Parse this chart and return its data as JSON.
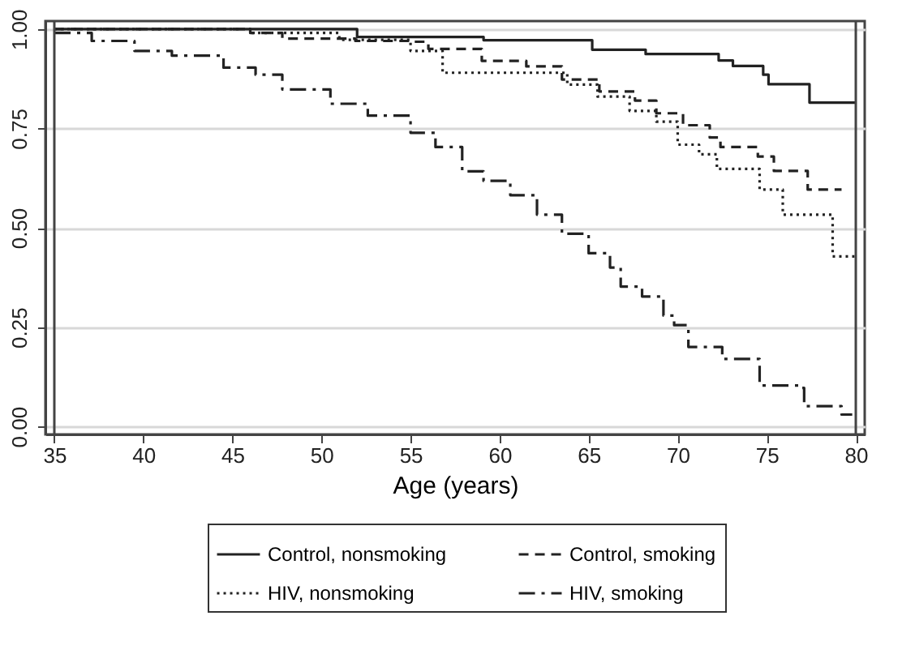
{
  "chart_data": {
    "type": "step",
    "xlabel": "Age (years)",
    "xlim": [
      34.5,
      80.5
    ],
    "xticks": [
      35,
      40,
      45,
      50,
      55,
      60,
      65,
      70,
      75,
      80
    ],
    "ylim": [
      -0.02,
      1.02
    ],
    "yticks": [
      {
        "value": 0,
        "label": "0.00"
      },
      {
        "value": 0.25,
        "label": "0.25"
      },
      {
        "value": 0.5,
        "label": "0.50"
      },
      {
        "value": 0.75,
        "label": "0.75"
      },
      {
        "value": 1,
        "label": "1.00"
      }
    ],
    "grid": "y",
    "legend": "bottom",
    "marker": "none",
    "ref_lines": [
      {
        "axis": "x",
        "value": 35,
        "color": "#444444"
      },
      {
        "axis": "x",
        "value": 80,
        "color": "#444444"
      }
    ],
    "series": [
      {
        "name": "Control, nonsmoking",
        "color": "#222222",
        "line_style": "solid",
        "x": [
          35,
          52,
          59.1,
          65.2,
          68.2,
          72.3,
          73.1,
          74.8,
          75.1,
          77.4,
          80
        ],
        "values": [
          1.0,
          0.98,
          0.972,
          0.948,
          0.937,
          0.921,
          0.907,
          0.885,
          0.861,
          0.815,
          0.815
        ]
      },
      {
        "name": "Control, smoking",
        "color": "#222222",
        "line_style": "dashed",
        "x": [
          35,
          46,
          47.8,
          51.9,
          55,
          56,
          59,
          61.5,
          63.5,
          65.6,
          67.6,
          68.8,
          70.3,
          71.8,
          72.4,
          74.5,
          75.4,
          77.3,
          79.2
        ],
        "values": [
          1.0,
          0.99,
          0.976,
          0.97,
          0.968,
          0.95,
          0.92,
          0.906,
          0.873,
          0.843,
          0.82,
          0.788,
          0.758,
          0.727,
          0.703,
          0.679,
          0.643,
          0.596,
          0.596
        ]
      },
      {
        "name": "HIV, nonsmoking",
        "color": "#222222",
        "line_style": "dotted",
        "x": [
          35,
          46,
          51,
          55,
          56.8,
          63.8,
          65.5,
          67.3,
          68.8,
          70,
          71.2,
          72.2,
          74.6,
          75.9,
          78.7,
          80
        ],
        "values": [
          1.0,
          0.99,
          0.973,
          0.945,
          0.89,
          0.86,
          0.83,
          0.794,
          0.767,
          0.709,
          0.685,
          0.648,
          0.596,
          0.533,
          0.428,
          0.428
        ]
      },
      {
        "name": "HIV, smoking",
        "color": "#222222",
        "line_style": "dashdot",
        "x": [
          35,
          37.1,
          39.5,
          41.6,
          44.5,
          46.3,
          47.8,
          50.5,
          52.6,
          55,
          56.4,
          57.9,
          59.1,
          60.6,
          62.1,
          63.5,
          65,
          66.2,
          66.8,
          68,
          69.2,
          69.8,
          70.6,
          72.5,
          74.6,
          76.9,
          77.1,
          79.2,
          79.8
        ],
        "values": [
          0.99,
          0.97,
          0.945,
          0.933,
          0.903,
          0.885,
          0.848,
          0.812,
          0.782,
          0.739,
          0.703,
          0.642,
          0.618,
          0.582,
          0.533,
          0.485,
          0.436,
          0.4,
          0.352,
          0.327,
          0.279,
          0.255,
          0.2,
          0.17,
          0.103,
          0.097,
          0.051,
          0.03,
          0.03
        ]
      }
    ]
  }
}
